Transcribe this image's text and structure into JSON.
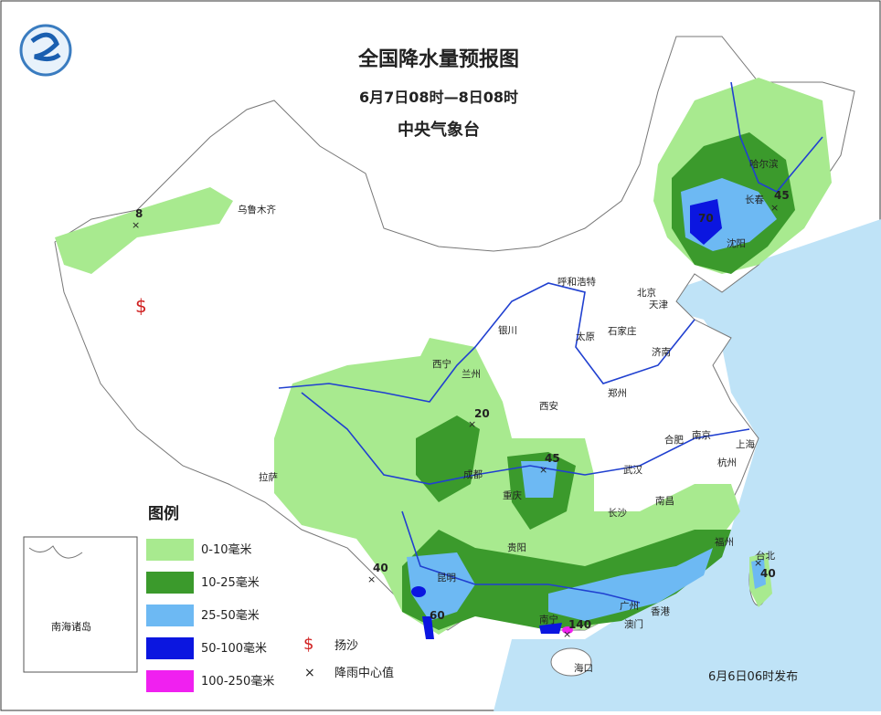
{
  "title": "全国降水量预报图",
  "subtitle": "6月7日08时—8日08时",
  "agency": "中央气象台",
  "legend": {
    "title": "图例",
    "items": [
      {
        "label": "0-10毫米",
        "color": "#a8ea8f"
      },
      {
        "label": "10-25毫米",
        "color": "#3b9a2c"
      },
      {
        "label": "25-50毫米",
        "color": "#6db9f3"
      },
      {
        "label": "50-100毫米",
        "color": "#0b16e0"
      },
      {
        "label": "100-250毫米",
        "color": "#f020f0"
      }
    ],
    "symbols": [
      "扬沙",
      "降雨中心值"
    ]
  },
  "cities": [
    "乌鲁木齐",
    "哈尔滨",
    "长春",
    "沈阳",
    "呼和浩特",
    "北京",
    "天津",
    "银川",
    "太原",
    "石家庄",
    "西宁",
    "兰州",
    "济南",
    "郑州",
    "西安",
    "合肥",
    "南京",
    "上海",
    "杭州",
    "武汉",
    "成都",
    "重庆",
    "拉萨",
    "长沙",
    "南昌",
    "贵阳",
    "福州",
    "台北",
    "昆明",
    "南宁",
    "广州",
    "香港",
    "澳门",
    "海口"
  ],
  "rain_centers": [
    8,
    70,
    45,
    20,
    45,
    40,
    60,
    140,
    40
  ],
  "inset_label": "南海诸岛",
  "issued": "6月6日06时发布"
}
